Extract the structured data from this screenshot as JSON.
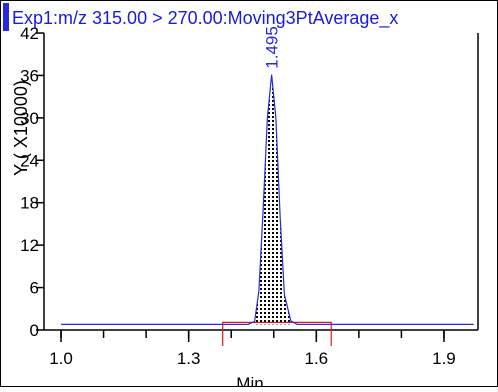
{
  "chart_data": {
    "type": "line",
    "title": "Exp1:m/z 315.00 > 270.00:Moving3PtAverage_x",
    "xlabel": "Min",
    "ylabel": "Y ( X10000)",
    "xlim": [
      0.96,
      1.98
    ],
    "ylim": [
      0,
      42
    ],
    "x_ticks": [
      1.0,
      1.3,
      1.6,
      1.9
    ],
    "x_tick_labels": [
      "1.0",
      "1.3",
      "1.6",
      "1.9"
    ],
    "x_minor_step": 0.1,
    "y_ticks": [
      0,
      6,
      12,
      18,
      24,
      30,
      36,
      42
    ],
    "y_tick_labels": [
      "0",
      "6",
      "12",
      "18",
      "24",
      "30",
      "36",
      "42"
    ],
    "baseline": 0.8,
    "peak": {
      "label": "1.495",
      "apex_x": 1.495,
      "apex_y": 36.1,
      "start_x": 1.45,
      "end_x": 1.54,
      "fill": "dotted"
    },
    "series": [
      {
        "color": "#2a2ad8",
        "x": [
          1.0,
          1.44,
          1.455,
          1.465,
          1.475,
          1.485,
          1.495,
          1.505,
          1.515,
          1.525,
          1.54,
          1.555,
          1.97
        ],
        "y": [
          0.8,
          0.8,
          1.2,
          5.5,
          17.0,
          30.0,
          36.1,
          30.0,
          16.0,
          5.0,
          1.3,
          0.8,
          0.8
        ]
      }
    ],
    "integration_window": {
      "start": 1.38,
      "end": 1.635,
      "color": "#d11f1f"
    },
    "grid": false,
    "colors": {
      "trace": "#2a2ad8",
      "title": "#1a1ae0",
      "peak_label": "#2a2ad8",
      "window": "#d11f1f",
      "axis": "#000000"
    }
  }
}
